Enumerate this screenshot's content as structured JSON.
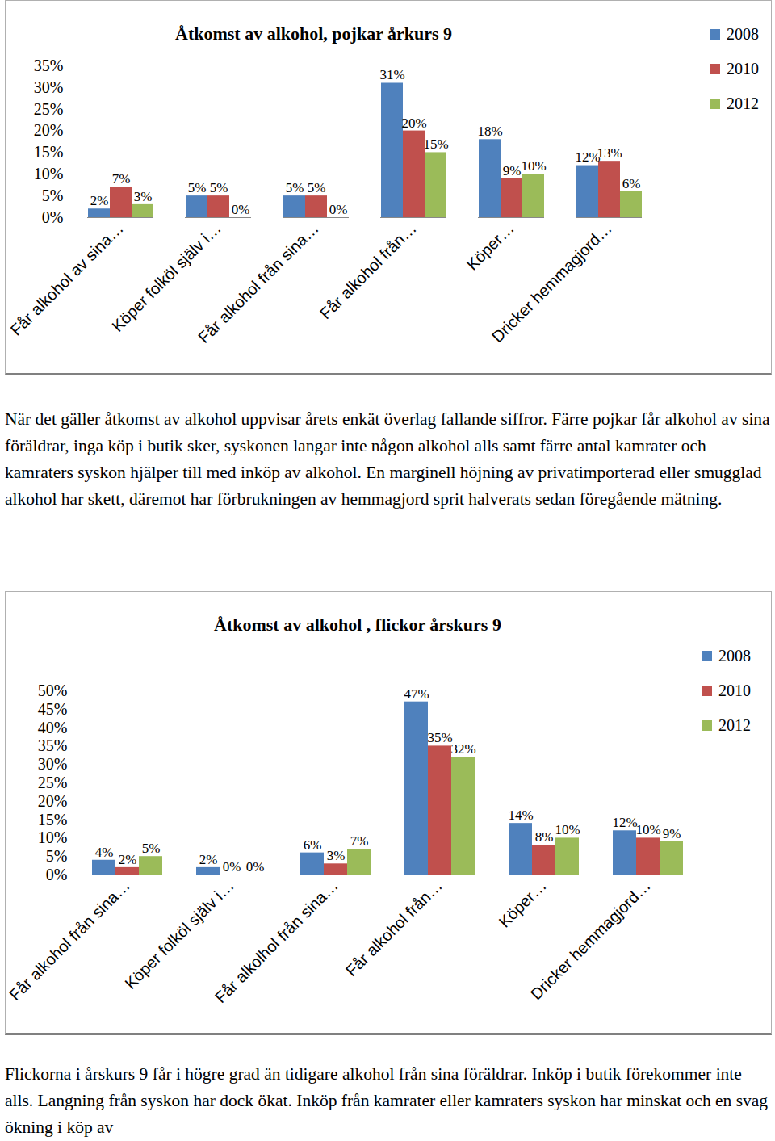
{
  "chart_data": [
    {
      "type": "bar",
      "title": "Åtkomst av alkohol, pojkar årkurs 9",
      "categories": [
        "Får alkohol av sina…",
        "Köper folköl själv i…",
        "Får alkohol från sina…",
        "Får alkohol från…",
        "Köper…",
        "Dricker hemmagjord…"
      ],
      "series": [
        {
          "name": "2008",
          "color": "#4f81bd",
          "values": [
            2,
            5,
            5,
            31,
            18,
            12
          ],
          "value_labels": [
            "2%",
            "5%",
            "5%",
            "31%",
            "18%",
            "12%"
          ]
        },
        {
          "name": "2010",
          "color": "#c0504d",
          "values": [
            7,
            5,
            5,
            20,
            9,
            13
          ],
          "value_labels": [
            "7%",
            "5%",
            "5%",
            "20%",
            "9%",
            "13%"
          ]
        },
        {
          "name": "2012",
          "color": "#9bbb59",
          "values": [
            3,
            0,
            0,
            15,
            10,
            6
          ],
          "value_labels": [
            "3%",
            "0%",
            "0%",
            "15%",
            "10%",
            "6%"
          ]
        }
      ],
      "ylim": [
        0,
        35
      ],
      "yticks": [
        {
          "value": 0,
          "label": "0%"
        },
        {
          "value": 5,
          "label": "5%"
        },
        {
          "value": 10,
          "label": "10%"
        },
        {
          "value": 15,
          "label": "15%"
        },
        {
          "value": 20,
          "label": "20%"
        },
        {
          "value": 25,
          "label": "25%"
        },
        {
          "value": 30,
          "label": "30%"
        },
        {
          "value": 35,
          "label": "35%"
        }
      ],
      "grid": false,
      "legend": "right",
      "data_labels": true
    },
    {
      "type": "bar",
      "title": "Åtkomst av alkohol , flickor årskurs 9",
      "categories": [
        "Får alkohol från sina…",
        "Köper folköl själv i…",
        "Får alkolhol från sina…",
        "Får alkohol från…",
        "Köper…",
        "Dricker hemmagjord…"
      ],
      "series": [
        {
          "name": "2008",
          "color": "#4f81bd",
          "values": [
            4,
            2,
            6,
            47,
            14,
            12
          ],
          "value_labels": [
            "4%",
            "2%",
            "6%",
            "47%",
            "14%",
            "12%"
          ]
        },
        {
          "name": "2010",
          "color": "#c0504d",
          "values": [
            2,
            0,
            3,
            35,
            8,
            10
          ],
          "value_labels": [
            "2%",
            "0%",
            "3%",
            "35%",
            "8%",
            "10%"
          ]
        },
        {
          "name": "2012",
          "color": "#9bbb59",
          "values": [
            5,
            0,
            7,
            32,
            10,
            9
          ],
          "value_labels": [
            "5%",
            "0%",
            "7%",
            "32%",
            "10%",
            "9%"
          ]
        }
      ],
      "ylim": [
        0,
        50
      ],
      "yticks": [
        {
          "value": 0,
          "label": "0%"
        },
        {
          "value": 5,
          "label": "5%"
        },
        {
          "value": 10,
          "label": "10%"
        },
        {
          "value": 15,
          "label": "15%"
        },
        {
          "value": 20,
          "label": "20%"
        },
        {
          "value": 25,
          "label": "25%"
        },
        {
          "value": 30,
          "label": "30%"
        },
        {
          "value": 35,
          "label": "35%"
        },
        {
          "value": 40,
          "label": "40%"
        },
        {
          "value": 45,
          "label": "45%"
        },
        {
          "value": 50,
          "label": "50%"
        }
      ],
      "grid": false,
      "legend": "right",
      "data_labels": true
    }
  ],
  "paragraphs": [
    "När det gäller åtkomst av alkohol uppvisar årets enkät överlag fallande siffror. Färre pojkar får alkohol av sina föräldrar, inga köp i butik sker, syskonen langar inte någon alkohol alls samt färre antal kamrater och kamraters syskon hjälper till med inköp av alkohol. En marginell höjning av privatimporterad eller smugglad alkohol har skett, däremot har förbrukningen av hemmagjord sprit halverats sedan föregående mätning.",
    "Flickorna i årskurs 9 får i högre grad än tidigare alkohol från sina föräldrar. Inköp i butik förekommer inte alls. Langning från syskon har dock ökat. Inköp från kamrater eller kamraters syskon har minskat och en svag ökning i köp av"
  ]
}
